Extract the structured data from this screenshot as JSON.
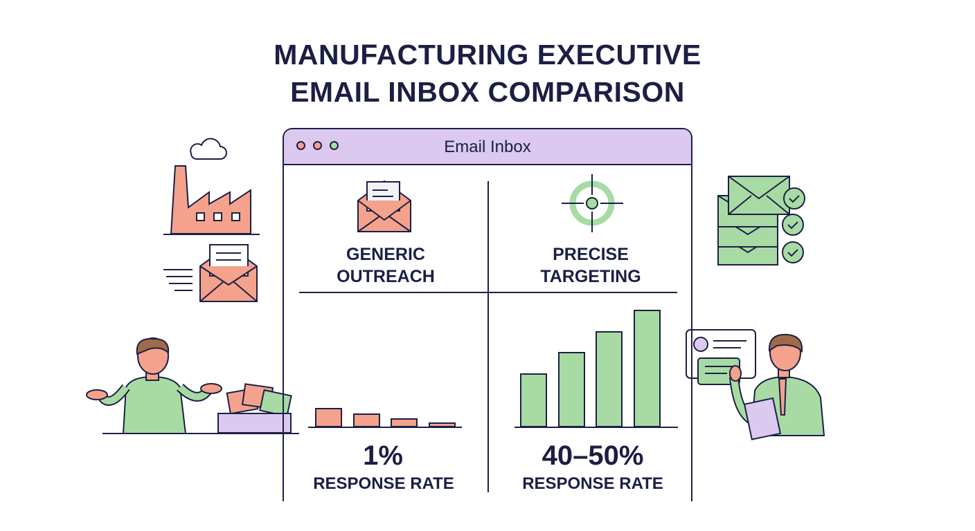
{
  "title": {
    "line1": "MANUFACTURING EXECUTIVE",
    "line2": "EMAIL INBOX COMPARISON"
  },
  "window": {
    "title": "Email Inbox",
    "dots": [
      "#f4a28c",
      "#f4a28c",
      "#a8dba4"
    ]
  },
  "colors": {
    "navy": "#1b1f45",
    "salmon": "#f4a28c",
    "green": "#a8dba4",
    "purple": "#dcc9f0"
  },
  "left": {
    "icon": "envelope-letter-icon",
    "label1": "GENERIC",
    "label2": "OUTREACH",
    "rate": "1%",
    "rate_label": "RESPONSE RATE",
    "bars": [
      28,
      20,
      13,
      7
    ]
  },
  "right": {
    "icon": "target-icon",
    "label1": "PRECISE",
    "label2": "TARGETING",
    "rate": "40–50%",
    "rate_label": "RESPONSE RATE",
    "bars": [
      78,
      109,
      139,
      170
    ]
  }
}
